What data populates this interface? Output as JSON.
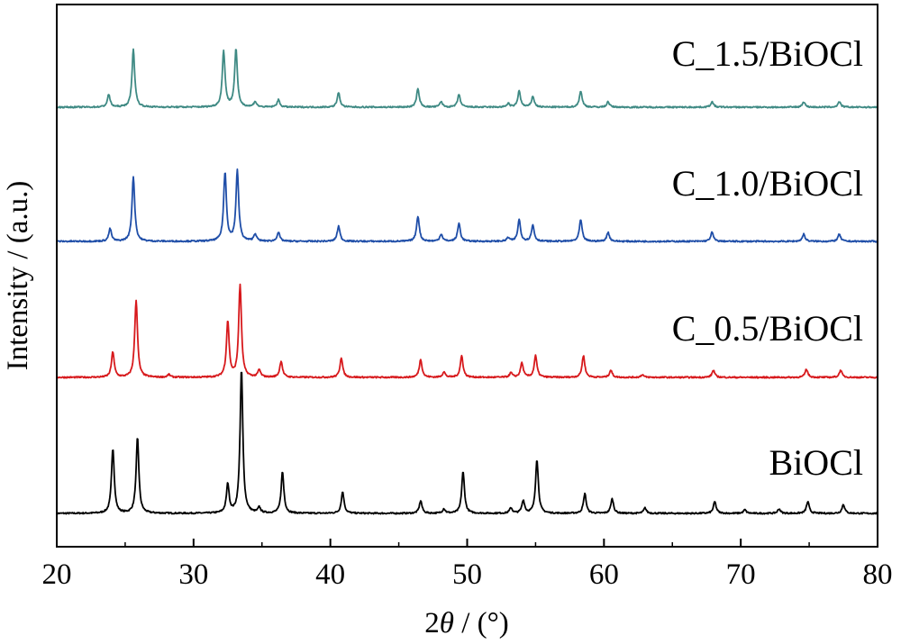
{
  "chart_data": {
    "type": "line",
    "title": "",
    "xlabel_parts": {
      "prefix": "2",
      "symbol": "θ",
      "suffix": " / (°)"
    },
    "ylabel": "Intensity / (a.u.)",
    "xlim": [
      20,
      80
    ],
    "xticks": [
      20,
      30,
      40,
      50,
      60,
      70,
      80
    ],
    "yticks_shown": false,
    "grid": false,
    "legend": "inline labels right of each trace",
    "series": [
      {
        "name": "BiOCl",
        "color": "#000000",
        "offset": 0,
        "peaks": [
          {
            "x": 24.1,
            "h": 72
          },
          {
            "x": 25.9,
            "h": 84
          },
          {
            "x": 32.5,
            "h": 32
          },
          {
            "x": 33.5,
            "h": 160
          },
          {
            "x": 34.8,
            "h": 6
          },
          {
            "x": 36.5,
            "h": 46
          },
          {
            "x": 40.9,
            "h": 24
          },
          {
            "x": 46.6,
            "h": 14
          },
          {
            "x": 48.3,
            "h": 5
          },
          {
            "x": 49.7,
            "h": 46
          },
          {
            "x": 53.2,
            "h": 6
          },
          {
            "x": 54.1,
            "h": 14
          },
          {
            "x": 55.1,
            "h": 60
          },
          {
            "x": 58.6,
            "h": 22
          },
          {
            "x": 60.6,
            "h": 16
          },
          {
            "x": 63.0,
            "h": 6
          },
          {
            "x": 68.1,
            "h": 13
          },
          {
            "x": 70.3,
            "h": 4
          },
          {
            "x": 72.8,
            "h": 5
          },
          {
            "x": 74.9,
            "h": 13
          },
          {
            "x": 77.5,
            "h": 10
          }
        ]
      },
      {
        "name": "C_0.5/BiOCl",
        "color": "#d7191c",
        "offset": 1,
        "peaks": [
          {
            "x": 24.1,
            "h": 28
          },
          {
            "x": 25.8,
            "h": 86
          },
          {
            "x": 28.2,
            "h": 3
          },
          {
            "x": 32.5,
            "h": 62
          },
          {
            "x": 33.4,
            "h": 102
          },
          {
            "x": 34.8,
            "h": 8
          },
          {
            "x": 36.4,
            "h": 18
          },
          {
            "x": 40.8,
            "h": 22
          },
          {
            "x": 46.6,
            "h": 20
          },
          {
            "x": 48.3,
            "h": 6
          },
          {
            "x": 49.6,
            "h": 24
          },
          {
            "x": 53.2,
            "h": 5
          },
          {
            "x": 54.0,
            "h": 16
          },
          {
            "x": 55.0,
            "h": 24
          },
          {
            "x": 58.5,
            "h": 24
          },
          {
            "x": 60.5,
            "h": 8
          },
          {
            "x": 62.8,
            "h": 3
          },
          {
            "x": 68.0,
            "h": 8
          },
          {
            "x": 74.8,
            "h": 9
          },
          {
            "x": 77.3,
            "h": 8
          }
        ]
      },
      {
        "name": "C_1.0/BiOCl",
        "color": "#1f4ea8",
        "offset": 2,
        "peaks": [
          {
            "x": 23.9,
            "h": 14
          },
          {
            "x": 25.6,
            "h": 72
          },
          {
            "x": 32.3,
            "h": 76
          },
          {
            "x": 33.2,
            "h": 78
          },
          {
            "x": 34.5,
            "h": 8
          },
          {
            "x": 36.2,
            "h": 10
          },
          {
            "x": 40.6,
            "h": 17
          },
          {
            "x": 46.4,
            "h": 28
          },
          {
            "x": 48.1,
            "h": 8
          },
          {
            "x": 49.4,
            "h": 20
          },
          {
            "x": 53.0,
            "h": 4
          },
          {
            "x": 53.8,
            "h": 24
          },
          {
            "x": 54.8,
            "h": 18
          },
          {
            "x": 58.3,
            "h": 24
          },
          {
            "x": 60.3,
            "h": 10
          },
          {
            "x": 67.9,
            "h": 10
          },
          {
            "x": 74.6,
            "h": 8
          },
          {
            "x": 77.2,
            "h": 8
          }
        ]
      },
      {
        "name": "C_1.5/BiOCl",
        "color": "#3f8a84",
        "offset": 3,
        "peaks": [
          {
            "x": 23.8,
            "h": 14
          },
          {
            "x": 25.6,
            "h": 64
          },
          {
            "x": 32.2,
            "h": 62
          },
          {
            "x": 33.1,
            "h": 64
          },
          {
            "x": 34.5,
            "h": 6
          },
          {
            "x": 36.2,
            "h": 8
          },
          {
            "x": 40.6,
            "h": 16
          },
          {
            "x": 46.4,
            "h": 20
          },
          {
            "x": 48.1,
            "h": 6
          },
          {
            "x": 49.4,
            "h": 14
          },
          {
            "x": 53.0,
            "h": 4
          },
          {
            "x": 53.8,
            "h": 18
          },
          {
            "x": 54.8,
            "h": 12
          },
          {
            "x": 58.3,
            "h": 18
          },
          {
            "x": 60.3,
            "h": 6
          },
          {
            "x": 67.9,
            "h": 6
          },
          {
            "x": 74.6,
            "h": 6
          },
          {
            "x": 77.2,
            "h": 6
          }
        ]
      }
    ]
  }
}
